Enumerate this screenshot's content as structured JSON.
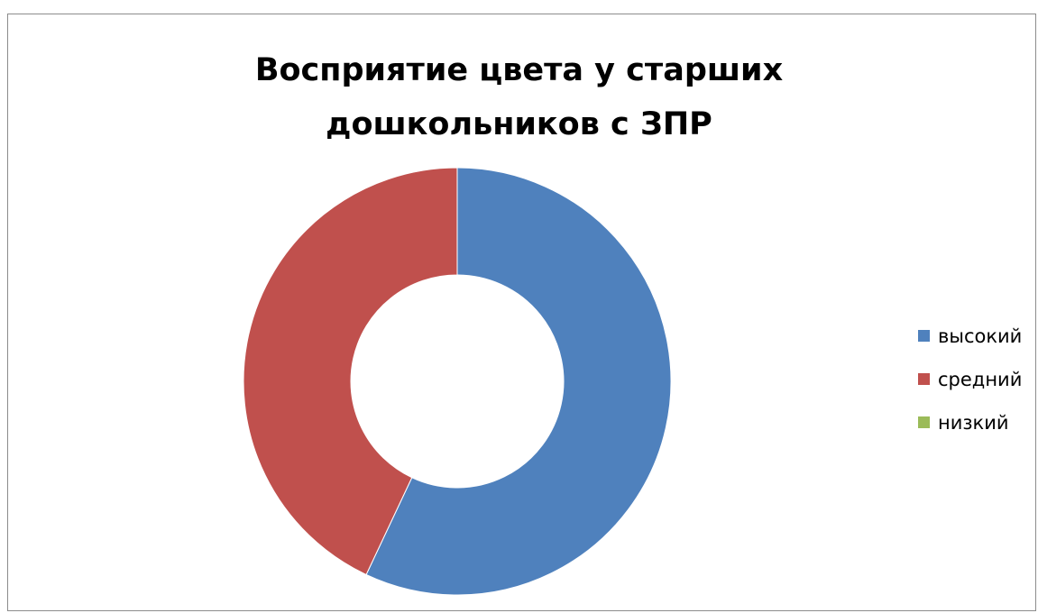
{
  "chart_data": {
    "type": "pie",
    "style": "donut",
    "title_lines": [
      "Восприятие цвета у старших",
      "дошкольников с ЗПР"
    ],
    "categories": [
      "высокий",
      "средний",
      "низкий"
    ],
    "values": [
      57,
      43,
      0
    ],
    "colors": [
      "#4f81bd",
      "#c0504d",
      "#9bbb59"
    ],
    "legend_position": "right"
  }
}
